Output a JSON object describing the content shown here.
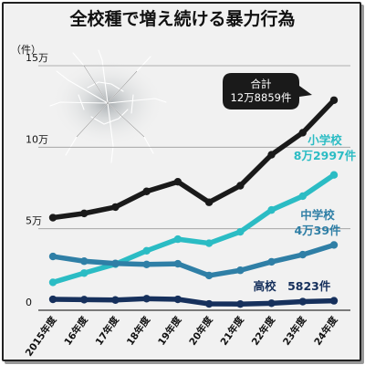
{
  "title": "全校種で増え続ける暴力行為",
  "chart_data": {
    "type": "line",
    "title": "全校種で増え続ける暴力行為",
    "ylabel": "（件）",
    "ylim": [
      0,
      150000
    ],
    "yticks": [
      {
        "value": 0,
        "label": "0"
      },
      {
        "value": 50000,
        "label": "5万"
      },
      {
        "value": 100000,
        "label": "10万"
      },
      {
        "value": 150000,
        "label": "15万"
      }
    ],
    "categories": [
      "2015年度",
      "16年度",
      "17年度",
      "18年度",
      "19年度",
      "20年度",
      "21年度",
      "22年度",
      "23年度",
      "24年度"
    ],
    "grid": true,
    "series": [
      {
        "name": "合計",
        "color": "#1a1a1a",
        "values": [
          56800,
          59400,
          63300,
          72900,
          78800,
          66200,
          76400,
          95400,
          108900,
          128859
        ],
        "label_lines": [
          "合計",
          "12万8859件"
        ]
      },
      {
        "name": "小学校",
        "color": "#2bbcc4",
        "values": [
          17100,
          22800,
          28300,
          36500,
          43600,
          41100,
          48100,
          61500,
          70000,
          82997
        ],
        "label_lines": [
          "小学校",
          "8万2997件"
        ]
      },
      {
        "name": "中学校",
        "color": "#2f7fa6",
        "values": [
          33000,
          30100,
          28700,
          28100,
          28500,
          21300,
          24500,
          29700,
          34100,
          40039
        ],
        "label_lines": [
          "中学校",
          "4万39件"
        ]
      },
      {
        "name": "高校",
        "color": "#16305c",
        "values": [
          6700,
          6500,
          6300,
          7100,
          6700,
          3900,
          3800,
          4300,
          5300,
          5823
        ],
        "label_lines": [
          "高校",
          "5823件"
        ]
      }
    ]
  }
}
